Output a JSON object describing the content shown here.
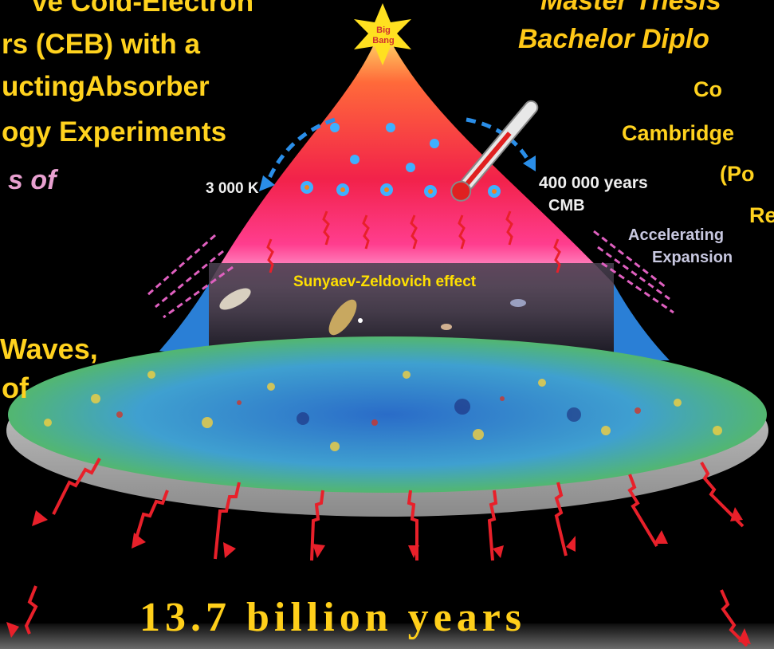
{
  "left_title": {
    "line1": "ve Cold-Electron",
    "line2": "rs (CEB) with a",
    "line3": "uctingAbsorber",
    "line4": "ogy Experiments"
  },
  "left_pink": "s of",
  "left_waves": {
    "line1": "Waves,",
    "line2": "of"
  },
  "right_title": {
    "line1": "Master Thesis",
    "line2": "Bachelor Diplo"
  },
  "right_list": [
    "Co",
    "Cambridge",
    "(Po",
    "Re"
  ],
  "labels": {
    "big_bang": "Big Bang",
    "temp": "3 000 K",
    "age": "400 000 years",
    "cmb": "CMB",
    "accel1": "Accelerating",
    "accel2": "Expansion",
    "sz": "Sunyaev-Zeldovich effect"
  },
  "bottom_caption": "13.7 billion years",
  "colors": {
    "title_yellow": "#ffd21e",
    "pink_text": "#e8a0d0",
    "arrow_red": "#e8202a"
  }
}
